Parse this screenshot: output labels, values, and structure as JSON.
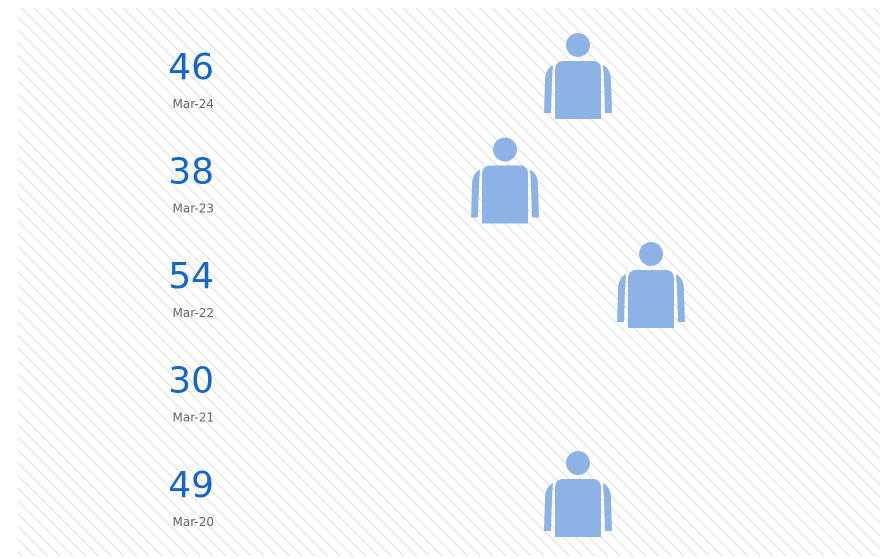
{
  "chart_data": {
    "type": "pictogram",
    "categories": [
      "Mar-24",
      "Mar-23",
      "Mar-22",
      "Mar-21",
      "Mar-20"
    ],
    "values": [
      46,
      38,
      54,
      30,
      49
    ],
    "color": "#0b5ec7",
    "faded_color": "#8db3e6"
  }
}
